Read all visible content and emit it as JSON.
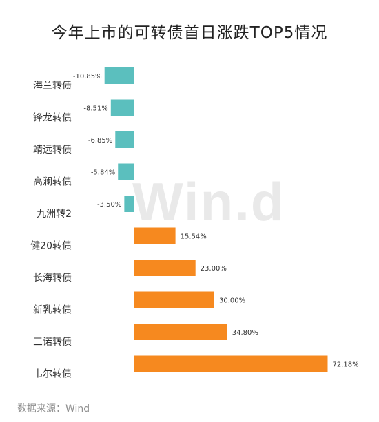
{
  "title": "今年上市的可转债首日涨跌TOP5情况",
  "watermark": "Win.d",
  "source": "数据来源：Wind",
  "colors": {
    "negative": "#5bbfbe",
    "positive": "#f6891f",
    "label": "#333333",
    "axis": "#d0d0d0"
  },
  "chart_data": {
    "type": "bar",
    "orientation": "horizontal",
    "title": "今年上市的可转债首日涨跌TOP5情况",
    "xlabel": "",
    "ylabel": "",
    "unit": "%",
    "categories": [
      "海兰转债",
      "锋龙转债",
      "靖远转债",
      "高澜转债",
      "九洲转2",
      "健20转债",
      "长海转债",
      "新乳转债",
      "三诺转债",
      "韦尔转债"
    ],
    "values": [
      -10.85,
      -8.51,
      -6.85,
      -5.84,
      -3.5,
      15.54,
      23.0,
      30.0,
      34.8,
      72.18
    ],
    "value_labels": [
      "-10.85%",
      "-8.51%",
      "-6.85%",
      "-5.84%",
      "-3.50%",
      "15.54%",
      "23.00%",
      "30.00%",
      "34.80%",
      "72.18%"
    ],
    "grid": false,
    "legend": "none"
  }
}
